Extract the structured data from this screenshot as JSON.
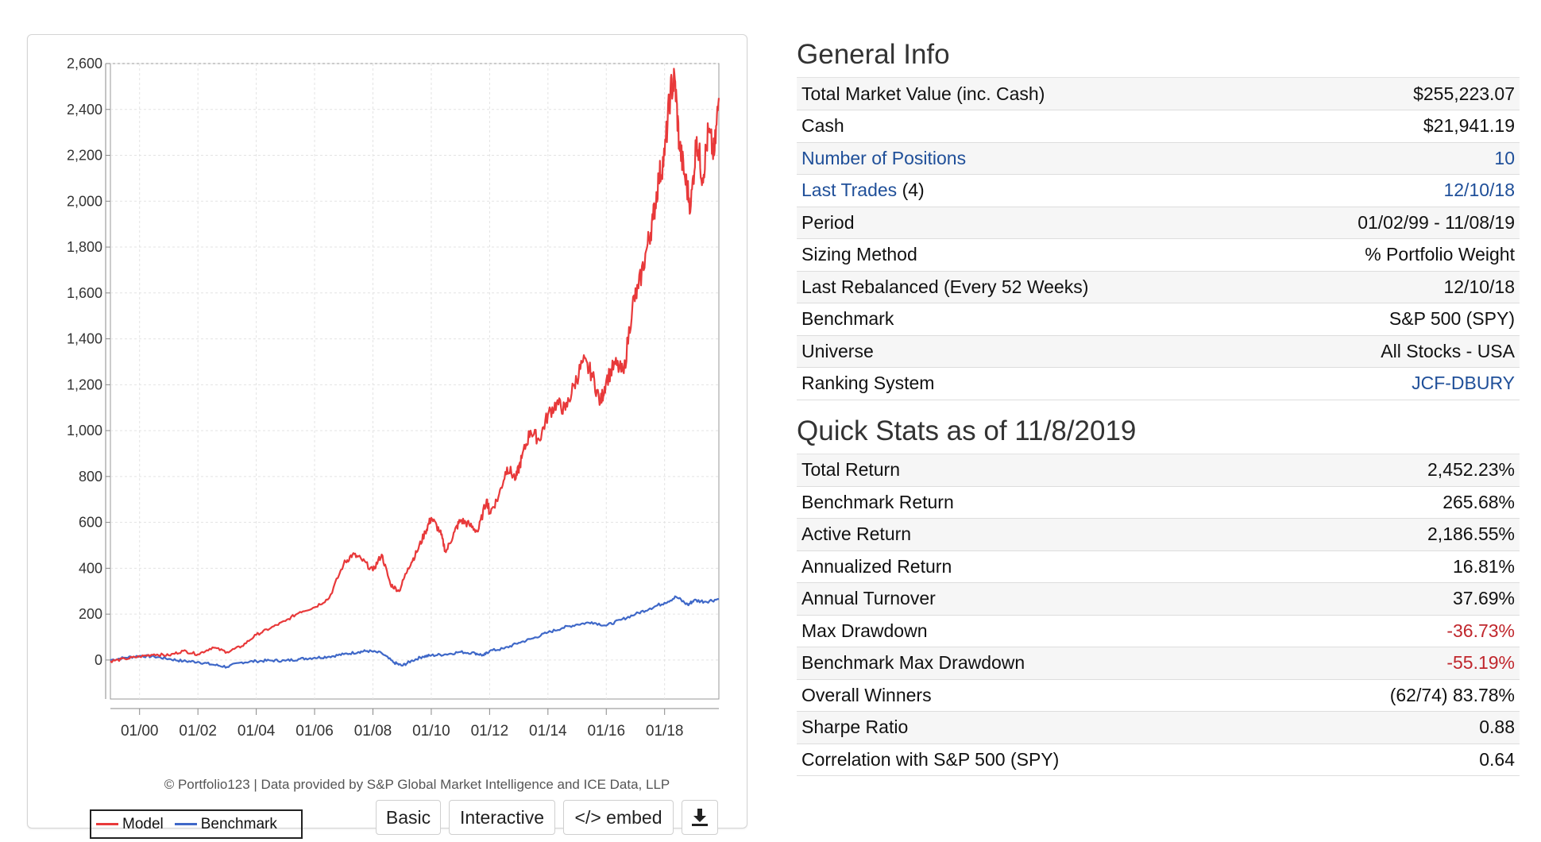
{
  "chart_data": {
    "type": "line",
    "y_ticks": [
      "2,600",
      "2,400",
      "2,200",
      "2,000",
      "1,800",
      "1,600",
      "1,400",
      "1,200",
      "1,000",
      "800",
      "600",
      "400",
      "200",
      "0"
    ],
    "ylim": [
      -170,
      2600
    ],
    "x_ticks": [
      "01/00",
      "01/02",
      "01/04",
      "01/06",
      "01/08",
      "01/10",
      "01/12",
      "01/14",
      "01/16",
      "01/18"
    ],
    "x_tick_years": [
      2000,
      2002,
      2004,
      2006,
      2008,
      2010,
      2012,
      2014,
      2016,
      2018
    ],
    "xlim": [
      1999.0,
      2019.86
    ],
    "grid": true,
    "series": [
      {
        "name": "Model",
        "color": "#e8393a",
        "x": [
          1999.0,
          1999.5,
          2000.0,
          2000.5,
          2001.0,
          2001.5,
          2002.0,
          2002.5,
          2003.0,
          2003.5,
          2004.0,
          2004.5,
          2005.0,
          2005.5,
          2006.0,
          2006.5,
          2007.0,
          2007.3,
          2007.6,
          2008.0,
          2008.3,
          2008.6,
          2008.9,
          2009.2,
          2009.5,
          2009.8,
          2010.0,
          2010.3,
          2010.5,
          2010.8,
          2011.0,
          2011.3,
          2011.6,
          2011.9,
          2012.0,
          2012.3,
          2012.6,
          2012.9,
          2013.1,
          2013.4,
          2013.7,
          2014.0,
          2014.3,
          2014.6,
          2014.9,
          2015.2,
          2015.5,
          2015.8,
          2016.0,
          2016.3,
          2016.6,
          2016.9,
          2017.1,
          2017.4,
          2017.6,
          2017.8,
          2018.0,
          2018.2,
          2018.35,
          2018.5,
          2018.7,
          2018.9,
          2019.1,
          2019.3,
          2019.5,
          2019.7,
          2019.86
        ],
        "values": [
          -5,
          5,
          15,
          25,
          20,
          40,
          25,
          55,
          35,
          60,
          110,
          140,
          170,
          210,
          230,
          270,
          420,
          460,
          440,
          390,
          460,
          330,
          300,
          400,
          470,
          560,
          620,
          560,
          470,
          560,
          610,
          590,
          560,
          700,
          640,
          710,
          840,
          790,
          880,
          1000,
          960,
          1070,
          1120,
          1090,
          1200,
          1300,
          1250,
          1120,
          1220,
          1290,
          1250,
          1550,
          1620,
          1800,
          1920,
          2100,
          2200,
          2480,
          2530,
          2250,
          2100,
          1980,
          2280,
          2100,
          2300,
          2200,
          2450
        ]
      },
      {
        "name": "Benchmark",
        "color": "#3f68c8",
        "x": [
          1999.0,
          1999.5,
          2000.0,
          2000.5,
          2001.0,
          2001.5,
          2002.0,
          2002.5,
          2003.0,
          2003.5,
          2004.0,
          2004.5,
          2005.0,
          2005.5,
          2006.0,
          2006.5,
          2007.0,
          2007.5,
          2007.8,
          2008.3,
          2008.7,
          2009.0,
          2009.3,
          2009.7,
          2010.0,
          2010.5,
          2011.0,
          2011.5,
          2011.8,
          2012.0,
          2012.5,
          2013.0,
          2013.5,
          2014.0,
          2014.5,
          2015.0,
          2015.5,
          2016.0,
          2016.5,
          2017.0,
          2017.5,
          2018.0,
          2018.4,
          2018.8,
          2019.0,
          2019.4,
          2019.86
        ],
        "values": [
          0,
          10,
          18,
          15,
          5,
          -5,
          -8,
          -20,
          -30,
          -10,
          -5,
          -2,
          -3,
          5,
          10,
          15,
          25,
          35,
          40,
          30,
          -10,
          -25,
          -5,
          15,
          20,
          25,
          35,
          30,
          20,
          40,
          50,
          75,
          95,
          120,
          140,
          155,
          165,
          150,
          175,
          200,
          225,
          250,
          275,
          240,
          260,
          255,
          266
        ]
      }
    ]
  },
  "chart_credit": "© Portfolio123 | Data provided by S&P Global Market Intelligence and ICE Data, LLP",
  "legend": {
    "model": "Model",
    "benchmark": "Benchmark"
  },
  "buttons": {
    "basic": "Basic",
    "interactive": "Interactive",
    "embed": "</> embed",
    "download_icon": "download-icon"
  },
  "general_info": {
    "title": "General Info",
    "rows": [
      {
        "label": "Total Market Value (inc. Cash)",
        "value": "$255,223.07"
      },
      {
        "label": "Cash",
        "value": "$21,941.19"
      },
      {
        "label": "Number of Positions",
        "value": "10"
      },
      {
        "label": "Last Trades",
        "label_suffix": "(4)",
        "value": "12/10/18"
      },
      {
        "label": "Period",
        "value": "01/02/99 - 11/08/19"
      },
      {
        "label": "Sizing Method",
        "value": "% Portfolio Weight"
      },
      {
        "label": "Last Rebalanced (Every 52 Weeks)",
        "value": "12/10/18"
      },
      {
        "label": "Benchmark",
        "value": "S&P 500 (SPY)"
      },
      {
        "label": "Universe",
        "value": "All Stocks - USA"
      },
      {
        "label": "Ranking System",
        "value": "JCF-DBURY"
      }
    ]
  },
  "quick_stats": {
    "title": "Quick Stats as of 11/8/2019",
    "rows": [
      {
        "label": "Total Return",
        "value": "2,452.23%"
      },
      {
        "label": "Benchmark Return",
        "value": "265.68%"
      },
      {
        "label": "Active Return",
        "value": "2,186.55%"
      },
      {
        "label": "Annualized Return",
        "value": "16.81%"
      },
      {
        "label": "Annual Turnover",
        "value": "37.69%"
      },
      {
        "label": "Max Drawdown",
        "value": "-36.73%"
      },
      {
        "label": "Benchmark Max Drawdown",
        "value": "-55.19%"
      },
      {
        "label": "Overall Winners",
        "value": "(62/74) 83.78%"
      },
      {
        "label": "Sharpe Ratio",
        "value": "0.88"
      },
      {
        "label": "Correlation with S&P 500 (SPY)",
        "value": "0.64"
      }
    ]
  },
  "colors": {
    "link": "#1f4f99",
    "negative": "#c0272d",
    "model": "#e8393a",
    "benchmark": "#3f68c8"
  }
}
